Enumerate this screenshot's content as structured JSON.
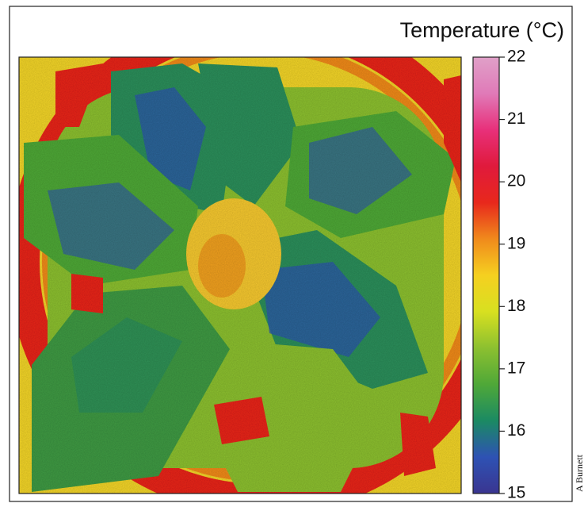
{
  "colorbar": {
    "title": "Temperature (°C)",
    "lim": [
      15,
      22
    ],
    "ticks": [
      15,
      16,
      17,
      18,
      19,
      20,
      21,
      22
    ],
    "colors": [
      "#3a3590",
      "#2e52b4",
      "#1b8a63",
      "#4fa838",
      "#8cc030",
      "#d8e020",
      "#f5d020",
      "#f08a1c",
      "#e8281c",
      "#e01a3c",
      "#e8307a",
      "#e07ab8",
      "#e0a0c8"
    ]
  },
  "credit": "A Burnett"
}
